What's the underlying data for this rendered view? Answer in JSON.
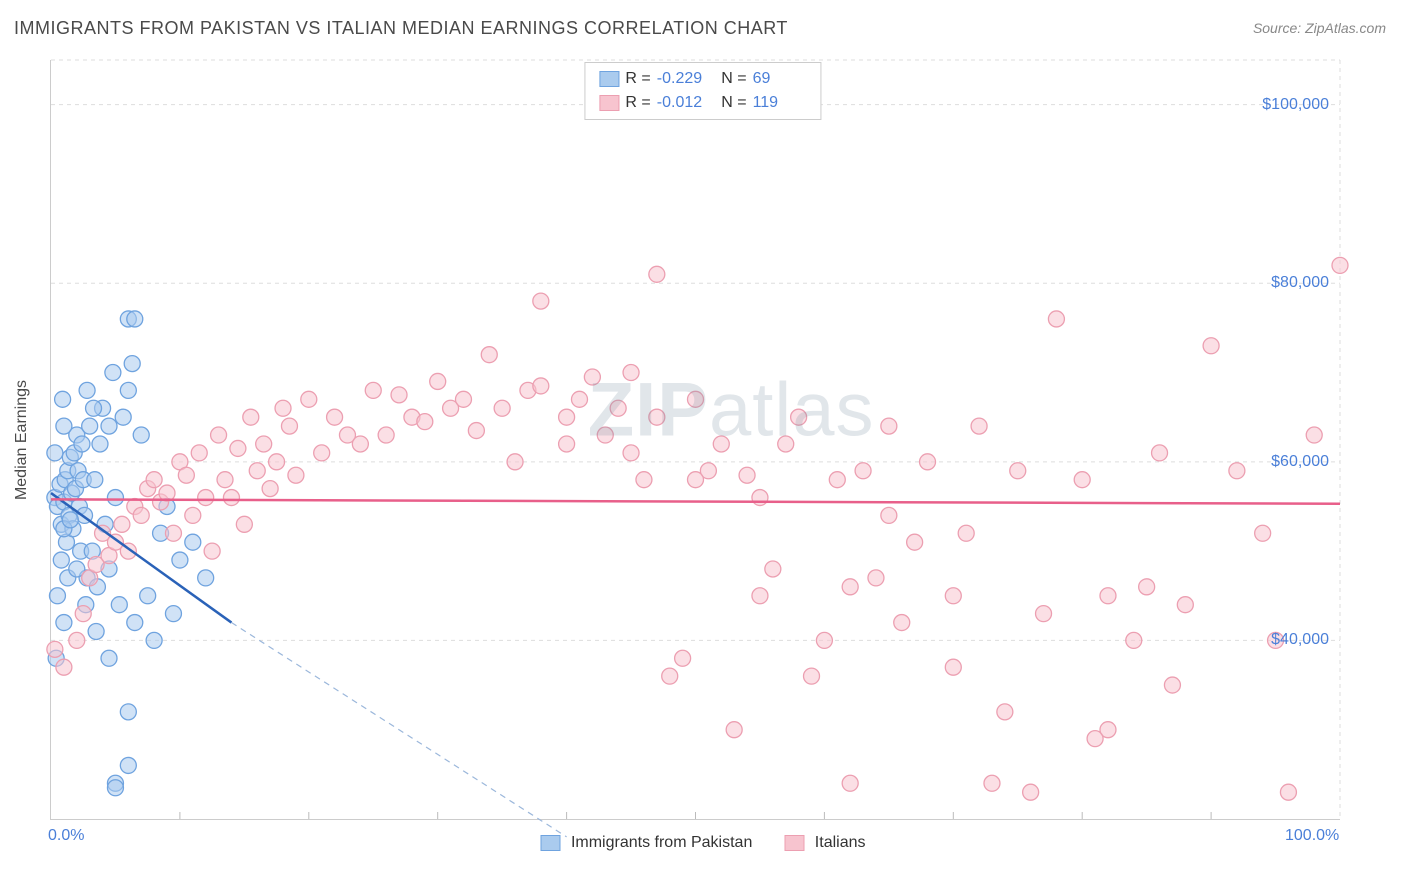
{
  "title": "IMMIGRANTS FROM PAKISTAN VS ITALIAN MEDIAN EARNINGS CORRELATION CHART",
  "source": "Source: ZipAtlas.com",
  "ylabel": "Median Earnings",
  "watermark": "ZIPatlas",
  "chart": {
    "type": "scatter",
    "xlim": [
      0,
      100
    ],
    "ylim": [
      20000,
      105000
    ],
    "yticks": [
      40000,
      60000,
      80000,
      100000
    ],
    "ytick_labels": [
      "$40,000",
      "$60,000",
      "$80,000",
      "$100,000"
    ],
    "xtick_labels": {
      "min": "0.0%",
      "max": "100.0%"
    },
    "grid_color": "#dddddd",
    "background_color": "#ffffff",
    "axis_color": "#cccccc",
    "tick_color": "#4a7fd8",
    "marker_radius": 8,
    "marker_opacity": 0.55,
    "series": [
      {
        "name": "Immigrants from Pakistan",
        "color_fill": "#aacbee",
        "color_stroke": "#6fa3df",
        "R": "-0.229",
        "N": "69",
        "trend": {
          "x1": 0,
          "y1": 56500,
          "x2": 14,
          "y2": 42000,
          "color": "#2a62b8",
          "width": 2.5,
          "ext_x2": 40,
          "ext_y2": 18000,
          "ext_dash": "6,5",
          "ext_color": "#9bb7db"
        },
        "points": [
          [
            0.3,
            56000
          ],
          [
            0.5,
            55000
          ],
          [
            0.7,
            57500
          ],
          [
            0.8,
            53000
          ],
          [
            1.0,
            55500
          ],
          [
            1.1,
            58000
          ],
          [
            1.2,
            51000
          ],
          [
            1.3,
            59000
          ],
          [
            1.4,
            54000
          ],
          [
            1.5,
            60500
          ],
          [
            1.6,
            56500
          ],
          [
            1.7,
            52500
          ],
          [
            1.8,
            61000
          ],
          [
            1.9,
            57000
          ],
          [
            2.0,
            63000
          ],
          [
            2.1,
            59000
          ],
          [
            2.2,
            55000
          ],
          [
            2.3,
            50000
          ],
          [
            2.4,
            62000
          ],
          [
            2.5,
            58000
          ],
          [
            2.6,
            54000
          ],
          [
            2.8,
            47000
          ],
          [
            3.0,
            64000
          ],
          [
            3.2,
            50000
          ],
          [
            3.4,
            58000
          ],
          [
            3.6,
            46000
          ],
          [
            3.8,
            62000
          ],
          [
            4.0,
            66000
          ],
          [
            4.2,
            53000
          ],
          [
            4.5,
            48000
          ],
          [
            4.8,
            70000
          ],
          [
            5.0,
            56000
          ],
          [
            5.3,
            44000
          ],
          [
            5.6,
            65000
          ],
          [
            6.0,
            68000
          ],
          [
            6.0,
            76000
          ],
          [
            6.3,
            71000
          ],
          [
            6.5,
            42000
          ],
          [
            6.5,
            76000
          ],
          [
            7.0,
            63000
          ],
          [
            6.0,
            32000
          ],
          [
            7.5,
            45000
          ],
          [
            8.0,
            40000
          ],
          [
            8.5,
            52000
          ],
          [
            9.0,
            55000
          ],
          [
            6.0,
            26000
          ],
          [
            9.5,
            43000
          ],
          [
            10.0,
            49000
          ],
          [
            11.0,
            51000
          ],
          [
            5.0,
            24000
          ],
          [
            5.0,
            23500
          ],
          [
            12.0,
            47000
          ],
          [
            0.5,
            45000
          ],
          [
            0.8,
            49000
          ],
          [
            1.0,
            42000
          ],
          [
            1.3,
            47000
          ],
          [
            0.4,
            38000
          ],
          [
            0.3,
            61000
          ],
          [
            1.0,
            64000
          ],
          [
            4.5,
            64000
          ],
          [
            2.8,
            68000
          ],
          [
            3.3,
            66000
          ],
          [
            0.9,
            67000
          ],
          [
            1.0,
            52500
          ],
          [
            1.5,
            53500
          ],
          [
            2.0,
            48000
          ],
          [
            2.7,
            44000
          ],
          [
            3.5,
            41000
          ],
          [
            4.5,
            38000
          ]
        ]
      },
      {
        "name": "Italians",
        "color_fill": "#f7c4cf",
        "color_stroke": "#ec9fb1",
        "R": "-0.012",
        "N": "119",
        "trend": {
          "x1": 0,
          "y1": 55800,
          "x2": 100,
          "y2": 55300,
          "color": "#e85f8a",
          "width": 2.5
        },
        "points": [
          [
            0.3,
            39000
          ],
          [
            1.0,
            37000
          ],
          [
            2.0,
            40000
          ],
          [
            2.5,
            43000
          ],
          [
            3.0,
            47000
          ],
          [
            3.5,
            48500
          ],
          [
            4.0,
            52000
          ],
          [
            4.5,
            49500
          ],
          [
            5.0,
            51000
          ],
          [
            5.5,
            53000
          ],
          [
            6.0,
            50000
          ],
          [
            6.5,
            55000
          ],
          [
            7.0,
            54000
          ],
          [
            7.5,
            57000
          ],
          [
            8.0,
            58000
          ],
          [
            8.5,
            55500
          ],
          [
            9.0,
            56500
          ],
          [
            9.5,
            52000
          ],
          [
            10.0,
            60000
          ],
          [
            10.5,
            58500
          ],
          [
            11.0,
            54000
          ],
          [
            11.5,
            61000
          ],
          [
            12.0,
            56000
          ],
          [
            12.5,
            50000
          ],
          [
            13.0,
            63000
          ],
          [
            13.5,
            58000
          ],
          [
            14.0,
            56000
          ],
          [
            14.5,
            61500
          ],
          [
            15.0,
            53000
          ],
          [
            15.5,
            65000
          ],
          [
            16.0,
            59000
          ],
          [
            16.5,
            62000
          ],
          [
            17.0,
            57000
          ],
          [
            17.5,
            60000
          ],
          [
            18.0,
            66000
          ],
          [
            18.5,
            64000
          ],
          [
            19.0,
            58500
          ],
          [
            20.0,
            67000
          ],
          [
            21.0,
            61000
          ],
          [
            22.0,
            65000
          ],
          [
            23.0,
            63000
          ],
          [
            24.0,
            62000
          ],
          [
            25.0,
            68000
          ],
          [
            26.0,
            63000
          ],
          [
            27.0,
            67500
          ],
          [
            28.0,
            65000
          ],
          [
            29.0,
            64500
          ],
          [
            30.0,
            69000
          ],
          [
            31.0,
            66000
          ],
          [
            32.0,
            67000
          ],
          [
            33.0,
            63500
          ],
          [
            34.0,
            72000
          ],
          [
            35.0,
            66000
          ],
          [
            37.0,
            68000
          ],
          [
            38.0,
            68500
          ],
          [
            40.0,
            65000
          ],
          [
            41.0,
            67000
          ],
          [
            42.0,
            69500
          ],
          [
            43.0,
            63000
          ],
          [
            44.0,
            66000
          ],
          [
            38.0,
            78000
          ],
          [
            45.0,
            61000
          ],
          [
            46.0,
            58000
          ],
          [
            47.0,
            65000
          ],
          [
            48.0,
            36000
          ],
          [
            49.0,
            38000
          ],
          [
            50.0,
            67000
          ],
          [
            51.0,
            59000
          ],
          [
            47.0,
            81000
          ],
          [
            52.0,
            62000
          ],
          [
            53.0,
            30000
          ],
          [
            54.0,
            58500
          ],
          [
            55.0,
            45000
          ],
          [
            56.0,
            48000
          ],
          [
            57.0,
            62000
          ],
          [
            58.0,
            65000
          ],
          [
            59.0,
            36000
          ],
          [
            60.0,
            40000
          ],
          [
            61.0,
            58000
          ],
          [
            62.0,
            46000
          ],
          [
            63.0,
            59000
          ],
          [
            64.0,
            47000
          ],
          [
            65.0,
            64000
          ],
          [
            66.0,
            42000
          ],
          [
            67.0,
            51000
          ],
          [
            68.0,
            60000
          ],
          [
            70.0,
            37000
          ],
          [
            71.0,
            52000
          ],
          [
            72.0,
            64000
          ],
          [
            73.0,
            24000
          ],
          [
            74.0,
            32000
          ],
          [
            75.0,
            59000
          ],
          [
            76.0,
            23000
          ],
          [
            77.0,
            43000
          ],
          [
            78.0,
            76000
          ],
          [
            80.0,
            58000
          ],
          [
            82.0,
            30000
          ],
          [
            84.0,
            40000
          ],
          [
            82.0,
            45000
          ],
          [
            85.0,
            46000
          ],
          [
            86.0,
            61000
          ],
          [
            87.0,
            35000
          ],
          [
            88.0,
            44000
          ],
          [
            62.0,
            24000
          ],
          [
            90.0,
            73000
          ],
          [
            92.0,
            59000
          ],
          [
            94.0,
            52000
          ],
          [
            95.0,
            40000
          ],
          [
            96.0,
            23000
          ],
          [
            98.0,
            63000
          ],
          [
            81.0,
            29000
          ],
          [
            70.0,
            45000
          ],
          [
            65.0,
            54000
          ],
          [
            55.0,
            56000
          ],
          [
            50.0,
            58000
          ],
          [
            45.0,
            70000
          ],
          [
            40.0,
            62000
          ],
          [
            36.0,
            60000
          ],
          [
            100.0,
            82000
          ]
        ]
      }
    ]
  },
  "legend_bottom": [
    {
      "label": "Immigrants from Pakistan",
      "fill": "#aacbee",
      "stroke": "#6fa3df"
    },
    {
      "label": "Italians",
      "fill": "#f7c4cf",
      "stroke": "#ec9fb1"
    }
  ]
}
